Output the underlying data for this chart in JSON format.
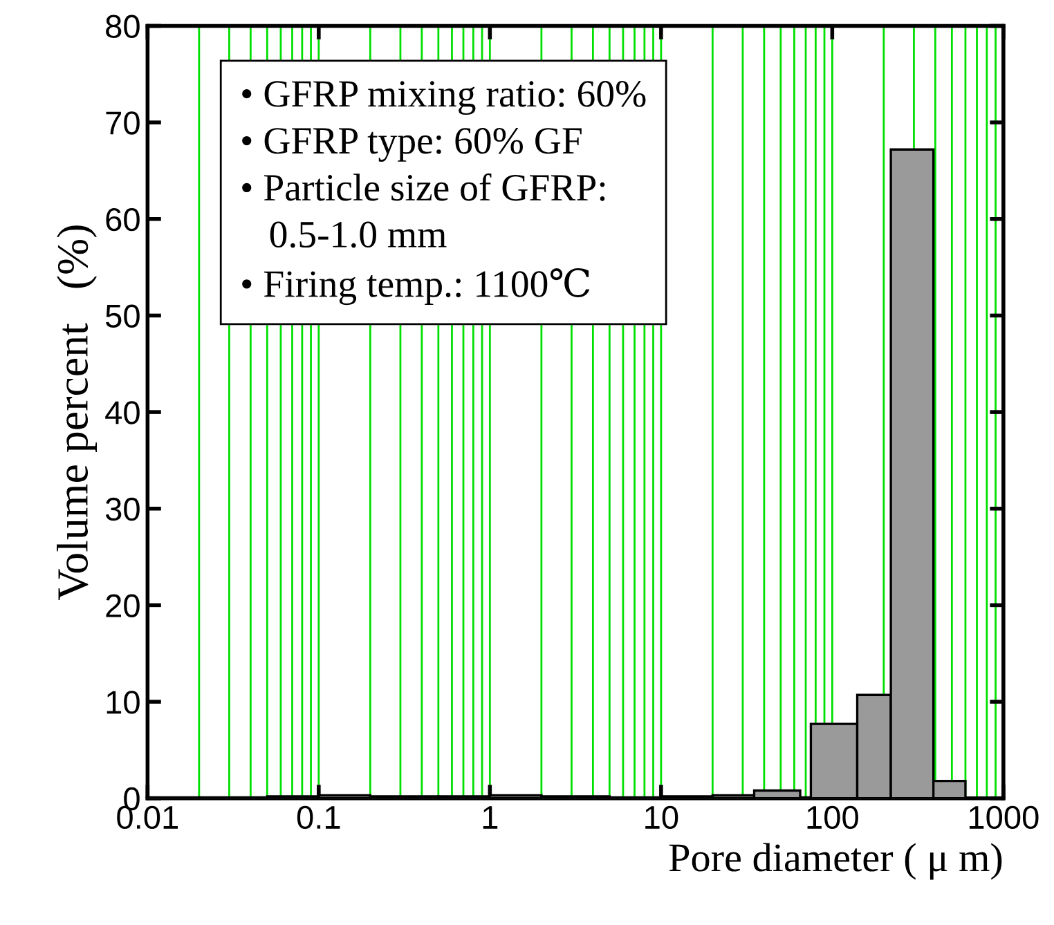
{
  "chart_data": {
    "type": "histogram",
    "bins": [
      0.01,
      0.02,
      0.05,
      0.1,
      0.2,
      0.5,
      1,
      2,
      5,
      10,
      20,
      35,
      65,
      75,
      140,
      220,
      390,
      600
    ],
    "values": [
      0.1,
      0.1,
      0.2,
      0.3,
      0.2,
      0.2,
      0.3,
      0.2,
      0.1,
      0.2,
      0.3,
      0.8,
      0.1,
      7.7,
      10.7,
      67.2,
      1.8
    ],
    "color": "#9a9a9a",
    "xlabel": "Pore diameter ( μ m)",
    "ylabel": "Volume percent   (%)",
    "log": "x",
    "xlim": [
      0.01,
      1000
    ],
    "xticks": [
      0.01,
      {
        "value": 0.02,
        "label": null
      },
      {
        "value": 0.03,
        "label": null
      },
      {
        "value": 0.04,
        "label": null
      },
      {
        "value": 0.05,
        "label": null
      },
      {
        "value": 0.06,
        "label": null
      },
      {
        "value": 0.07,
        "label": null
      },
      {
        "value": 0.08,
        "label": null
      },
      {
        "value": 0.09,
        "label": null
      },
      0.1,
      {
        "value": 0.2,
        "label": null
      },
      {
        "value": 0.3,
        "label": null
      },
      {
        "value": 0.4,
        "label": null
      },
      {
        "value": 0.5,
        "label": null
      },
      {
        "value": 0.6,
        "label": null
      },
      {
        "value": 0.7,
        "label": null
      },
      {
        "value": 0.8,
        "label": null
      },
      {
        "value": 0.9,
        "label": null
      },
      1,
      {
        "value": 2,
        "label": null
      },
      {
        "value": 3,
        "label": null
      },
      {
        "value": 4,
        "label": null
      },
      {
        "value": 5,
        "label": null
      },
      {
        "value": 6,
        "label": null
      },
      {
        "value": 7,
        "label": null
      },
      {
        "value": 8,
        "label": null
      },
      {
        "value": 9,
        "label": null
      },
      10,
      {
        "value": 20,
        "label": null
      },
      {
        "value": 30,
        "label": null
      },
      {
        "value": 40,
        "label": null
      },
      {
        "value": 50,
        "label": null
      },
      {
        "value": 60,
        "label": null
      },
      {
        "value": 70,
        "label": null
      },
      {
        "value": 80,
        "label": null
      },
      {
        "value": 90,
        "label": null
      },
      100,
      {
        "value": 200,
        "label": null
      },
      {
        "value": 300,
        "label": null
      },
      {
        "value": 400,
        "label": null
      },
      {
        "value": 500,
        "label": null
      },
      {
        "value": 600,
        "label": null
      },
      {
        "value": 700,
        "label": null
      },
      {
        "value": 800,
        "label": null
      },
      {
        "value": 900,
        "label": null
      },
      1000
    ],
    "ylim": [
      0,
      80
    ],
    "yticks": [
      0,
      10,
      20,
      30,
      40,
      50,
      60,
      70,
      80
    ],
    "grid": "x",
    "annotations": [
      "• GFRP mixing ratio: 60%",
      "• GFRP type: 60% GF",
      "• Particle size of GFRP:",
      "   0.5-1.0 mm",
      "• Firing temp.: 1100℃"
    ]
  }
}
